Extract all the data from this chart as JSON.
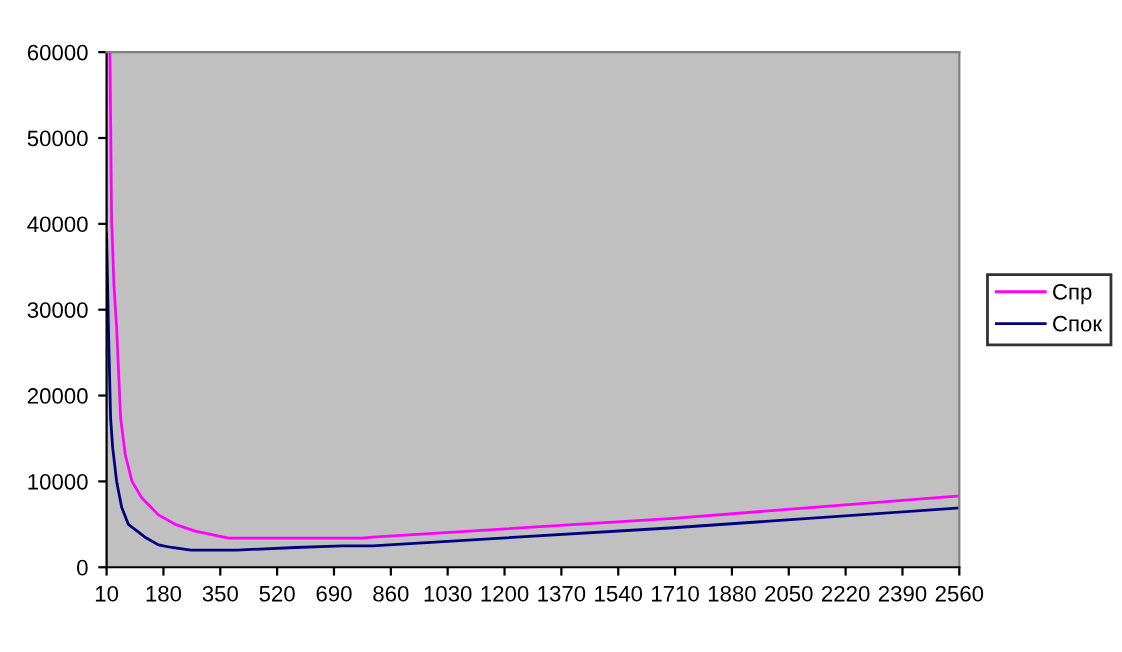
{
  "chart_data": {
    "type": "line",
    "xlim": [
      10,
      2560
    ],
    "xticks": [
      10,
      180,
      350,
      520,
      690,
      860,
      1030,
      1200,
      1370,
      1540,
      1710,
      1880,
      2050,
      2220,
      2390,
      2560
    ],
    "ylim": [
      0,
      60000
    ],
    "yticks": [
      0,
      10000,
      20000,
      30000,
      40000,
      50000,
      60000
    ],
    "grid": false,
    "legend": "right",
    "marker": "none",
    "line_style": "solid",
    "series": [
      {
        "name": "Спр",
        "color": "#ff00ff",
        "x": [
          20,
          25,
          32,
          40,
          52,
          66,
          86,
          115,
          165,
          215,
          275,
          375,
          575,
          775,
          805,
          1705,
          2560
        ],
        "values": [
          60000,
          40700,
          32900,
          27900,
          17400,
          13100,
          10000,
          8100,
          6100,
          5000,
          4200,
          3400,
          3400,
          3400,
          3500,
          5700,
          8300
        ]
      },
      {
        "name": "Спок",
        "color": "#000080",
        "x": [
          10,
          16,
          22,
          28,
          40,
          55,
          75,
          125,
          165,
          205,
          262,
          400,
          575,
          715,
          805,
          1705,
          2560
        ],
        "values": [
          38800,
          27000,
          17400,
          14000,
          10000,
          7000,
          5000,
          3500,
          2600,
          2300,
          2000,
          2000,
          2300,
          2500,
          2500,
          4600,
          6900
        ]
      }
    ]
  }
}
